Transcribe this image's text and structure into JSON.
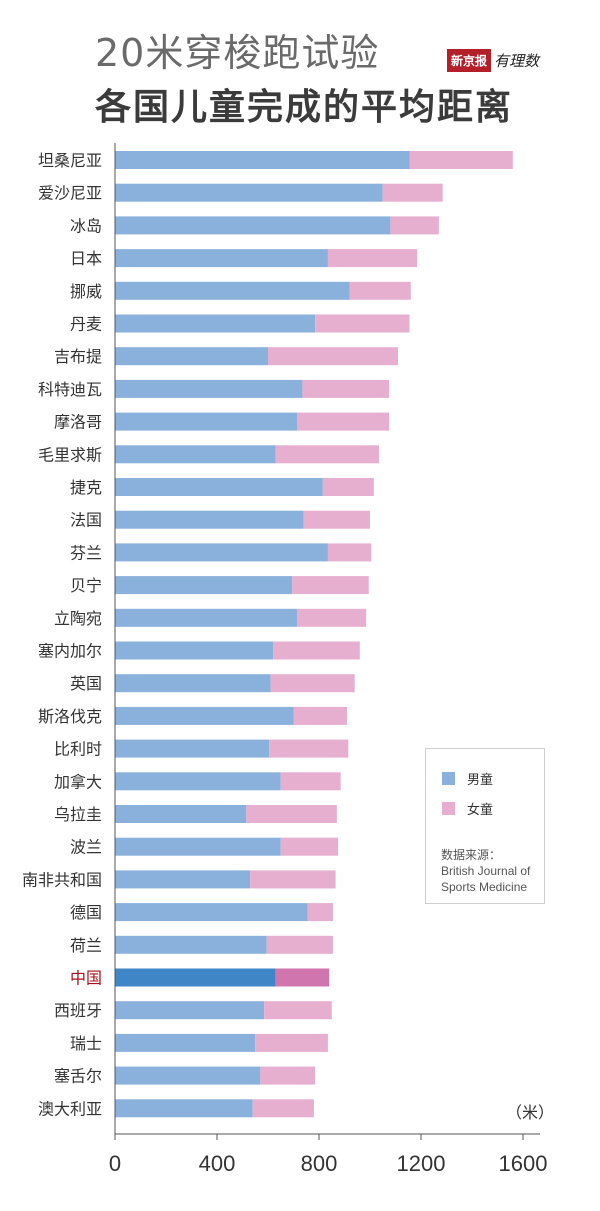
{
  "title_line1": "20米穿梭跑试验",
  "title_line2": "各国儿童完成的平均距离",
  "logo": {
    "brand": "新京报",
    "sub": "有理数"
  },
  "colors": {
    "boys": "#8ab1dc",
    "girls": "#e7afcf",
    "boys_highlight": "#3f86c6",
    "girls_highlight": "#d175ae",
    "highlight_label": "#a8101b"
  },
  "legend": {
    "boys": "男童",
    "girls": "女童",
    "source_label": "数据来源：",
    "source_line1": "British Journal of",
    "source_line2": "Sports Medicine"
  },
  "chart_data": {
    "type": "bar",
    "orientation": "horizontal",
    "stacked": true,
    "unit": "（米）",
    "xlim": [
      0,
      1600
    ],
    "xticks": [
      0,
      400,
      800,
      1200,
      1600
    ],
    "highlight": "中国",
    "categories": [
      "坦桑尼亚",
      "爱沙尼亚",
      "冰岛",
      "日本",
      "挪威",
      "丹麦",
      "吉布提",
      "科特迪瓦",
      "摩洛哥",
      "毛里求斯",
      "捷克",
      "法国",
      "芬兰",
      "贝宁",
      "立陶宛",
      "塞内加尔",
      "英国",
      "斯洛伐克",
      "比利时",
      "加拿大",
      "乌拉圭",
      "波兰",
      "南非共和国",
      "德国",
      "荷兰",
      "中国",
      "西班牙",
      "瑞士",
      "塞舌尔",
      "澳大利亚"
    ],
    "series": [
      {
        "name": "男童",
        "values": [
          1155,
          1050,
          1080,
          835,
          920,
          785,
          600,
          735,
          715,
          630,
          815,
          740,
          835,
          695,
          715,
          620,
          610,
          700,
          605,
          650,
          515,
          650,
          530,
          755,
          595,
          630,
          585,
          550,
          570,
          540
        ]
      },
      {
        "name": "女童",
        "values": [
          405,
          235,
          190,
          350,
          240,
          370,
          510,
          340,
          360,
          405,
          200,
          260,
          170,
          300,
          270,
          340,
          330,
          210,
          310,
          235,
          355,
          225,
          335,
          100,
          260,
          210,
          265,
          285,
          215,
          240
        ]
      }
    ]
  }
}
